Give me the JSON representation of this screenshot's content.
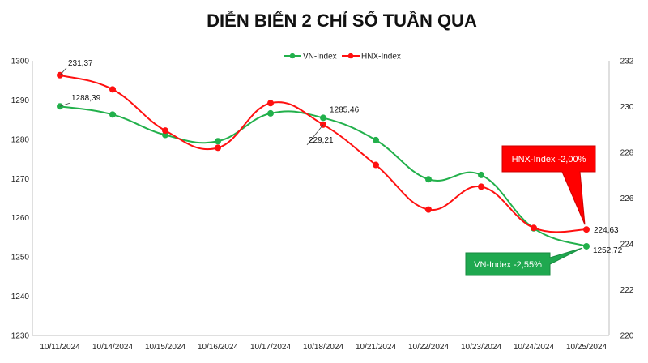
{
  "chart_data": {
    "type": "line",
    "title": "DIỄN BIẾN 2 CHỈ SỐ TUẦN QUA",
    "categories": [
      "10/11/2024",
      "10/14/2024",
      "10/15/2024",
      "10/16/2024",
      "10/17/2024",
      "10/18/2024",
      "10/21/2024",
      "10/22/2024",
      "10/23/2024",
      "10/24/2024",
      "10/25/2024"
    ],
    "series": [
      {
        "name": "VN-Index",
        "axis": "left",
        "color": "#22b04b",
        "values": [
          1288.39,
          1286.3,
          1281.1,
          1279.5,
          1286.6,
          1285.46,
          1279.8,
          1269.8,
          1270.9,
          1257.3,
          1252.72
        ]
      },
      {
        "name": "HNX-Index",
        "axis": "right",
        "color": "#ff1010",
        "values": [
          231.37,
          230.75,
          228.95,
          228.2,
          230.15,
          229.21,
          227.45,
          225.5,
          226.5,
          224.7,
          224.63
        ]
      }
    ],
    "y_left": {
      "min": 1230,
      "max": 1300,
      "ticks": [
        1230,
        1240,
        1250,
        1260,
        1270,
        1280,
        1290,
        1300
      ]
    },
    "y_right": {
      "min": 220,
      "max": 232,
      "ticks": [
        220,
        222,
        224,
        226,
        228,
        230,
        232
      ]
    },
    "legend_position": "top-center",
    "grid": false,
    "data_labels": [
      {
        "series": "HNX-Index",
        "index": 0,
        "text": "231,37"
      },
      {
        "series": "VN-Index",
        "index": 0,
        "text": "1288,39"
      },
      {
        "series": "VN-Index",
        "index": 5,
        "text": "1285,46"
      },
      {
        "series": "HNX-Index",
        "index": 5,
        "text": "229,21"
      },
      {
        "series": "HNX-Index",
        "index": 10,
        "text": "224,63"
      },
      {
        "series": "VN-Index",
        "index": 10,
        "text": "1252,72"
      }
    ],
    "callouts": [
      {
        "series": "HNX-Index",
        "text": "HNX-Index -2,00%",
        "color": "#ff0000"
      },
      {
        "series": "VN-Index",
        "text": "VN-Index -2,55%",
        "color": "#1fa84f"
      }
    ]
  }
}
